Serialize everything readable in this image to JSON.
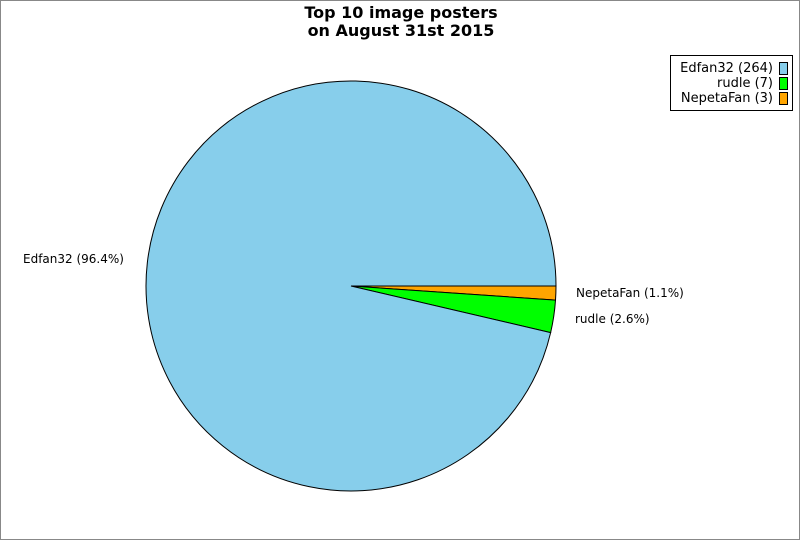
{
  "chart_data": {
    "type": "pie",
    "title": [
      "Top 10 image posters",
      "on August 31st 2015"
    ],
    "slices": [
      {
        "name": "NepetaFan",
        "value": 3,
        "percent_label": "NepetaFan (1.1%)",
        "legend_label": "NepetaFan (3)",
        "color": "#ffa500"
      },
      {
        "name": "rudle",
        "value": 7,
        "percent_label": "rudle (2.6%)",
        "legend_label": "rudle (7)",
        "color": "#00ff00"
      },
      {
        "name": "Edfan32",
        "value": 264,
        "percent_label": "Edfan32 (96.4%)",
        "legend_label": "Edfan32 (264)",
        "color": "#87ceeb"
      }
    ],
    "legend_order": [
      2,
      1,
      0
    ],
    "legend_placement": "top-right",
    "start_angle_deg": 0,
    "direction": "clockwise"
  }
}
